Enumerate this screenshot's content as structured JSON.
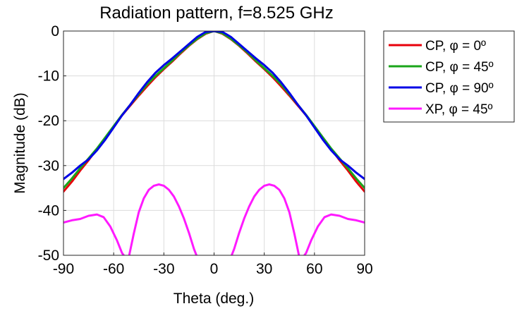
{
  "chart_data": {
    "type": "line",
    "title": "Radiation pattern, f=8.525 GHz",
    "xlabel": "Theta (deg.)",
    "ylabel": "Magnitude (dB)",
    "xlim": [
      -90,
      90
    ],
    "ylim": [
      -50,
      0
    ],
    "xticks": [
      -90,
      -60,
      -30,
      0,
      30,
      60,
      90
    ],
    "yticks": [
      0,
      -10,
      -20,
      -30,
      -40,
      -50
    ],
    "grid": true,
    "legend_position": "outside-right",
    "series": [
      {
        "name": "CP, φ = 0º",
        "color": "#e8000b",
        "x": [
          -90,
          -85,
          -80,
          -75,
          -70,
          -65,
          -60,
          -55,
          -50,
          -45,
          -40,
          -35,
          -30,
          -25,
          -20,
          -15,
          -10,
          -5,
          0,
          5,
          10,
          15,
          20,
          25,
          30,
          35,
          40,
          45,
          50,
          55,
          60,
          65,
          70,
          75,
          80,
          85,
          90
        ],
        "y": [
          -35.8,
          -33.6,
          -31.1,
          -28.8,
          -26.3,
          -23.8,
          -21.3,
          -18.8,
          -16.6,
          -14.4,
          -12.3,
          -10.3,
          -8.5,
          -6.8,
          -5.0,
          -3.3,
          -1.8,
          -0.6,
          0.0,
          -0.6,
          -1.8,
          -3.3,
          -5.0,
          -6.8,
          -8.5,
          -10.3,
          -12.3,
          -14.4,
          -16.6,
          -18.8,
          -21.3,
          -23.8,
          -26.3,
          -28.8,
          -31.1,
          -33.6,
          -35.8
        ]
      },
      {
        "name": "CP, φ = 45º",
        "color": "#1aa51a",
        "x": [
          -90,
          -85,
          -80,
          -75,
          -70,
          -65,
          -60,
          -55,
          -50,
          -45,
          -40,
          -35,
          -30,
          -25,
          -20,
          -15,
          -10,
          -5,
          0,
          5,
          10,
          15,
          20,
          25,
          30,
          35,
          40,
          45,
          50,
          55,
          60,
          65,
          70,
          75,
          80,
          85,
          90
        ],
        "y": [
          -35.0,
          -32.9,
          -30.6,
          -28.4,
          -26.2,
          -23.7,
          -21.2,
          -18.7,
          -16.4,
          -14.1,
          -11.9,
          -10.0,
          -8.3,
          -6.6,
          -4.8,
          -3.2,
          -1.7,
          -0.5,
          0.0,
          -0.5,
          -1.7,
          -3.2,
          -4.8,
          -6.6,
          -8.3,
          -10.0,
          -11.9,
          -14.1,
          -16.4,
          -18.7,
          -21.2,
          -23.7,
          -26.2,
          -28.4,
          -30.6,
          -32.9,
          -35.0
        ]
      },
      {
        "name": "CP, φ = 90º",
        "color": "#0000e6",
        "x": [
          -90,
          -85,
          -80,
          -75,
          -70,
          -65,
          -60,
          -55,
          -50,
          -45,
          -40,
          -35,
          -30,
          -25,
          -20,
          -15,
          -10,
          -5,
          0,
          5,
          10,
          15,
          20,
          25,
          30,
          35,
          40,
          45,
          50,
          55,
          60,
          65,
          70,
          75,
          80,
          85,
          90
        ],
        "y": [
          -33.0,
          -31.6,
          -30.0,
          -28.6,
          -26.6,
          -24.2,
          -21.5,
          -18.8,
          -16.4,
          -13.8,
          -11.4,
          -9.3,
          -7.6,
          -6.1,
          -4.5,
          -2.9,
          -1.3,
          -0.2,
          0.0,
          -0.2,
          -1.3,
          -2.9,
          -4.5,
          -6.1,
          -7.6,
          -9.3,
          -11.4,
          -13.8,
          -16.4,
          -18.8,
          -21.5,
          -24.2,
          -26.6,
          -28.6,
          -30.0,
          -31.6,
          -33.0
        ]
      },
      {
        "name": "XP, φ = 45º",
        "color": "#ff1aff",
        "x": [
          -90,
          -85,
          -80,
          -75,
          -70,
          -66,
          -62,
          -58,
          -55,
          -53,
          null,
          -51,
          -48,
          -45,
          -42,
          -39,
          -36,
          -33,
          -30,
          -27,
          -24,
          -21,
          -18,
          -15,
          -12,
          -10,
          null,
          10,
          12,
          15,
          18,
          21,
          24,
          27,
          30,
          33,
          36,
          39,
          42,
          45,
          48,
          51,
          null,
          53,
          55,
          58,
          62,
          66,
          70,
          75,
          80,
          85,
          90
        ],
        "y": [
          -42.7,
          -42.2,
          -41.9,
          -41.2,
          -40.9,
          -41.5,
          -43.6,
          -46.7,
          -49.5,
          -50.5,
          null,
          -50.5,
          -45.2,
          -40.4,
          -37.3,
          -35.4,
          -34.5,
          -34.2,
          -34.5,
          -35.4,
          -36.9,
          -39.1,
          -41.8,
          -45.0,
          -48.6,
          -50.5,
          null,
          -50.5,
          -48.6,
          -45.0,
          -41.8,
          -39.1,
          -36.9,
          -35.4,
          -34.5,
          -34.2,
          -34.5,
          -35.4,
          -37.3,
          -40.4,
          -45.2,
          -50.5,
          null,
          -50.5,
          -49.5,
          -46.7,
          -43.6,
          -41.5,
          -40.9,
          -41.2,
          -41.9,
          -42.2,
          -42.7
        ]
      }
    ]
  }
}
